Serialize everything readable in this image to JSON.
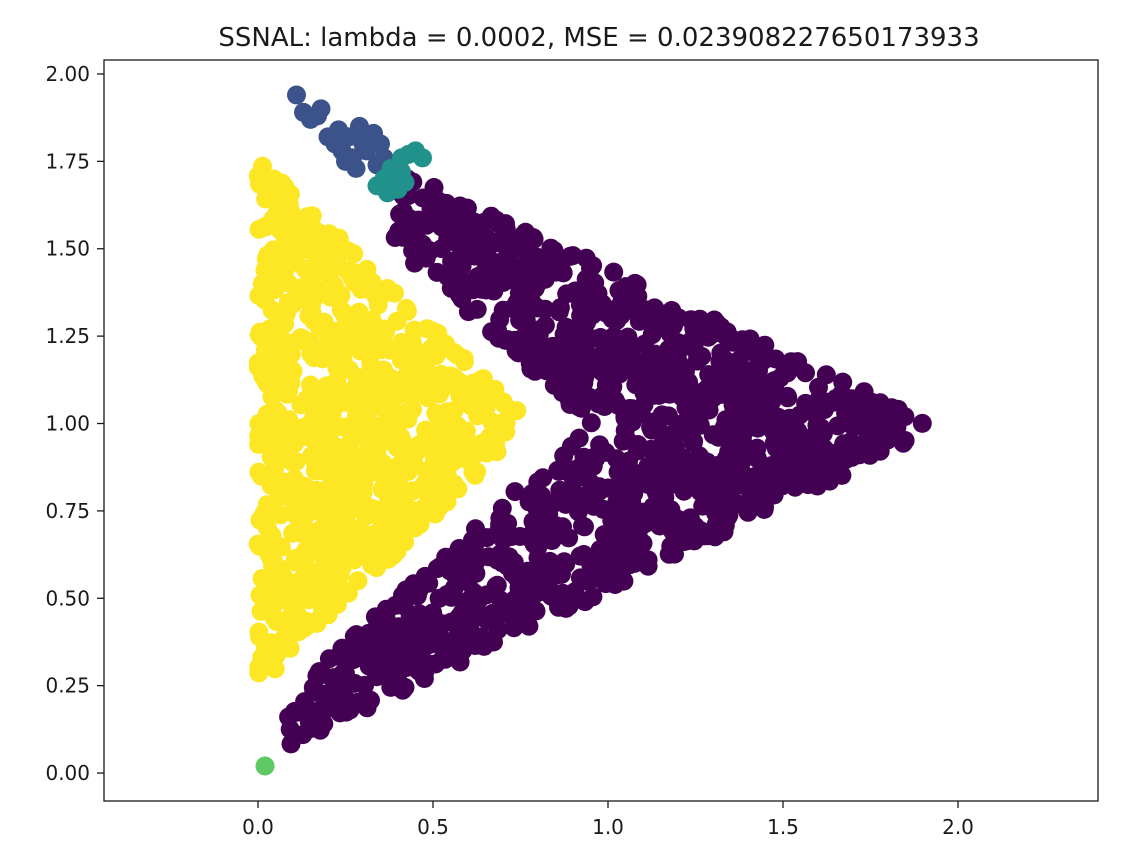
{
  "chart_data": {
    "type": "scatter",
    "title": "SSNAL: lambda = 0.0002, MSE = 0.023908227650173933",
    "xlabel": "",
    "ylabel": "",
    "xlim": [
      -0.44,
      2.4
    ],
    "ylim": [
      -0.08,
      2.04
    ],
    "xticks": [
      0.0,
      0.5,
      1.0,
      1.5,
      2.0
    ],
    "xtick_labels": [
      "0.0",
      "0.5",
      "1.0",
      "1.5",
      "2.0"
    ],
    "yticks": [
      0.0,
      0.25,
      0.5,
      0.75,
      1.0,
      1.25,
      1.5,
      1.75,
      2.0
    ],
    "ytick_labels": [
      "0.00",
      "0.25",
      "0.50",
      "0.75",
      "1.00",
      "1.25",
      "1.50",
      "1.75",
      "2.00"
    ],
    "grid": false,
    "legend": "none",
    "series": [
      {
        "color": "#440154",
        "regions": [
          {
            "shape": "triangle",
            "vertices": [
              [
                0.06,
                0.06
              ],
              [
                0.42,
                1.72
              ],
              [
                1.95,
                0.99
              ]
            ],
            "notch": [
              0.95,
              1.0
            ],
            "count": 1200
          }
        ],
        "points": []
      },
      {
        "color": "#fde725",
        "regions": [
          {
            "shape": "triangle",
            "vertices": [
              [
                0.0,
                0.25
              ],
              [
                0.0,
                1.76
              ],
              [
                0.78,
                1.0
              ]
            ],
            "count": 800
          }
        ],
        "points": []
      },
      {
        "color": "#3b528b",
        "regions": [],
        "points": [
          [
            0.11,
            1.94
          ],
          [
            0.13,
            1.89
          ],
          [
            0.15,
            1.87
          ],
          [
            0.18,
            1.9
          ],
          [
            0.2,
            1.82
          ],
          [
            0.22,
            1.8
          ],
          [
            0.24,
            1.78
          ],
          [
            0.26,
            1.82
          ],
          [
            0.27,
            1.76
          ],
          [
            0.29,
            1.85
          ],
          [
            0.3,
            1.8
          ],
          [
            0.31,
            1.78
          ],
          [
            0.33,
            1.83
          ],
          [
            0.35,
            1.8
          ],
          [
            0.36,
            1.76
          ],
          [
            0.28,
            1.73
          ],
          [
            0.25,
            1.75
          ],
          [
            0.34,
            1.74
          ],
          [
            0.23,
            1.84
          ],
          [
            0.17,
            1.88
          ]
        ]
      },
      {
        "color": "#21918c",
        "regions": [],
        "points": [
          [
            0.34,
            1.68
          ],
          [
            0.37,
            1.66
          ],
          [
            0.39,
            1.7
          ],
          [
            0.4,
            1.67
          ],
          [
            0.41,
            1.72
          ],
          [
            0.42,
            1.69
          ],
          [
            0.38,
            1.73
          ],
          [
            0.43,
            1.77
          ],
          [
            0.45,
            1.78
          ],
          [
            0.47,
            1.76
          ],
          [
            0.41,
            1.76
          ],
          [
            0.36,
            1.7
          ]
        ]
      },
      {
        "color": "#5ec962",
        "regions": [],
        "points": [
          [
            0.02,
            0.02
          ]
        ]
      }
    ]
  }
}
